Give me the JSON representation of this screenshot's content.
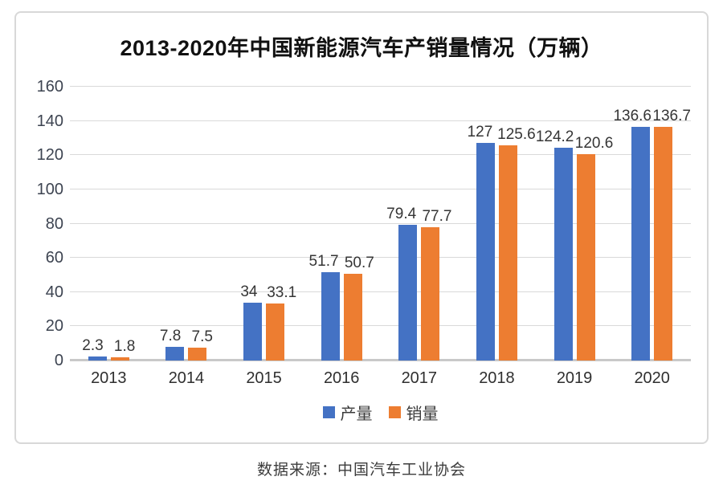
{
  "chart": {
    "title": "2013-2020年中国新能源汽车产销量情况（万辆）"
  },
  "source_note": "数据来源：中国汽车工业协会",
  "chart_data": {
    "type": "bar",
    "title": "2013-2020年中国新能源汽车产销量情况（万辆）",
    "categories": [
      "2013",
      "2014",
      "2015",
      "2016",
      "2017",
      "2018",
      "2019",
      "2020"
    ],
    "series": [
      {
        "name": "产量",
        "color": "#4472C4",
        "values": [
          2.3,
          7.8,
          34,
          51.7,
          79.4,
          127,
          124.2,
          136.6
        ]
      },
      {
        "name": "销量",
        "color": "#ED7D31",
        "values": [
          1.8,
          7.5,
          33.1,
          50.7,
          77.7,
          125.6,
          120.6,
          136.7
        ]
      }
    ],
    "ylim": [
      0,
      160
    ],
    "yticks": [
      0,
      20,
      40,
      60,
      80,
      100,
      120,
      140,
      160
    ],
    "xlabel": "",
    "ylabel": "",
    "grid": true,
    "data_labels": true,
    "legend_position": "bottom",
    "colors": {
      "grid": "#d9d9d9",
      "axis": "#c9c9c9",
      "label_text": "#353535"
    }
  }
}
